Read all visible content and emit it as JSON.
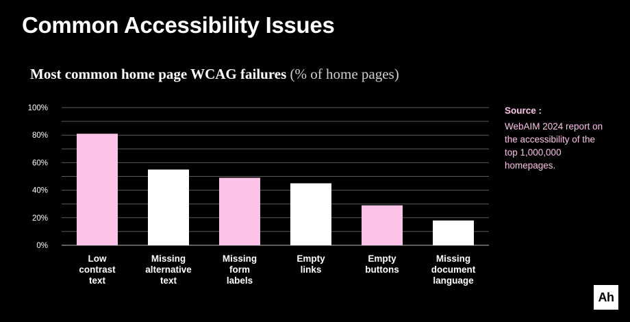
{
  "page": {
    "title": "Common Accessibility Issues"
  },
  "colors": {
    "background": "#000000",
    "pink": "#fbc3e7",
    "white": "#ffffff",
    "grid": "#5a5a5a",
    "text": "#ffffff"
  },
  "source": {
    "label": "Source :",
    "text": "WebAIM 2024 report on the accessibility of the top 1,000,000 homepages."
  },
  "logo": {
    "text": "Ah"
  },
  "chart_data": {
    "type": "bar",
    "title": "Most common home page WCAG failures",
    "subtitle": "(% of home pages)",
    "xlabel": "",
    "ylabel": "",
    "ylim": [
      0,
      100
    ],
    "yticks": [
      "0%",
      "20%",
      "40%",
      "60%",
      "80%",
      "100%"
    ],
    "ytick_values": [
      0,
      20,
      40,
      60,
      80,
      100
    ],
    "grid": true,
    "categories": [
      [
        "Low",
        "contrast",
        "text"
      ],
      [
        "Missing",
        "alternative",
        "text"
      ],
      [
        "Missing",
        "form",
        "labels"
      ],
      [
        "Empty",
        "links"
      ],
      [
        "Empty",
        "buttons"
      ],
      [
        "Missing",
        "document",
        "language"
      ]
    ],
    "values": [
      81,
      55,
      49,
      45,
      29,
      18
    ],
    "bar_colors": [
      "#fbc3e7",
      "#ffffff",
      "#fbc3e7",
      "#ffffff",
      "#fbc3e7",
      "#ffffff"
    ]
  }
}
